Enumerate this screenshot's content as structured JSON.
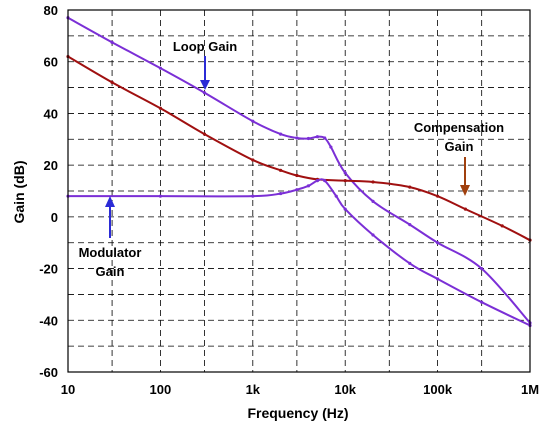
{
  "chart_data": {
    "type": "line",
    "xlabel": "Frequency (Hz)",
    "ylabel": "Gain (dB)",
    "xscale": "log",
    "xlim": [
      10,
      1000000
    ],
    "ylim": [
      -60,
      80
    ],
    "xticks": [
      10,
      100,
      1000,
      10000,
      100000,
      1000000
    ],
    "xtick_labels": [
      "10",
      "100",
      "1k",
      "10k",
      "100k",
      "1M"
    ],
    "yticks": [
      80,
      60,
      40,
      20,
      0,
      -20,
      -40,
      -60
    ],
    "ytick_labels": [
      "80",
      "60",
      "40",
      "20",
      "0",
      "-20",
      "-40",
      "-60"
    ],
    "grid": true,
    "grid_style": "dashed",
    "series": [
      {
        "name": "Loop Gain",
        "color": "#7b2fd6",
        "x": [
          10,
          30,
          100,
          300,
          1000,
          2000,
          3000,
          4000,
          5000,
          6000,
          7000,
          10000,
          20000,
          50000,
          100000,
          300000,
          1000000
        ],
        "y": [
          77,
          67.5,
          57.5,
          48,
          37,
          32,
          30.5,
          30.3,
          31,
          30.5,
          27,
          17,
          6,
          -3,
          -10,
          -20,
          -41
        ]
      },
      {
        "name": "Compensation Gain",
        "color": "#a01010",
        "x": [
          10,
          30,
          100,
          300,
          1000,
          2000,
          3000,
          5000,
          10000,
          20000,
          50000,
          100000,
          200000,
          500000,
          1000000
        ],
        "y": [
          62,
          52,
          42,
          32,
          22,
          18,
          16,
          14.5,
          14,
          13.5,
          11.5,
          8,
          3,
          -3.5,
          -9
        ]
      },
      {
        "name": "Modulator Gain",
        "color": "#7b2fd6",
        "x": [
          10,
          100,
          1000,
          2000,
          3000,
          4000,
          5000,
          6000,
          8000,
          10000,
          20000,
          50000,
          100000,
          300000,
          1000000
        ],
        "y": [
          8,
          8,
          8,
          9,
          10.5,
          12,
          14,
          14,
          8,
          3,
          -7,
          -18,
          -24,
          -33,
          -42
        ]
      }
    ],
    "annotations": [
      {
        "text": "Loop Gain",
        "arrow_color": "#2b2bd6"
      },
      {
        "text": "Compensation Gain",
        "arrow_color": "#a0400e"
      },
      {
        "text": "Modulator Gain",
        "arrow_color": "#2b2bd6"
      }
    ],
    "annotation_lines": [
      [
        "Loop Gain"
      ],
      [
        "Compensation",
        "Gain"
      ],
      [
        "Modulator",
        "Gain"
      ]
    ]
  }
}
